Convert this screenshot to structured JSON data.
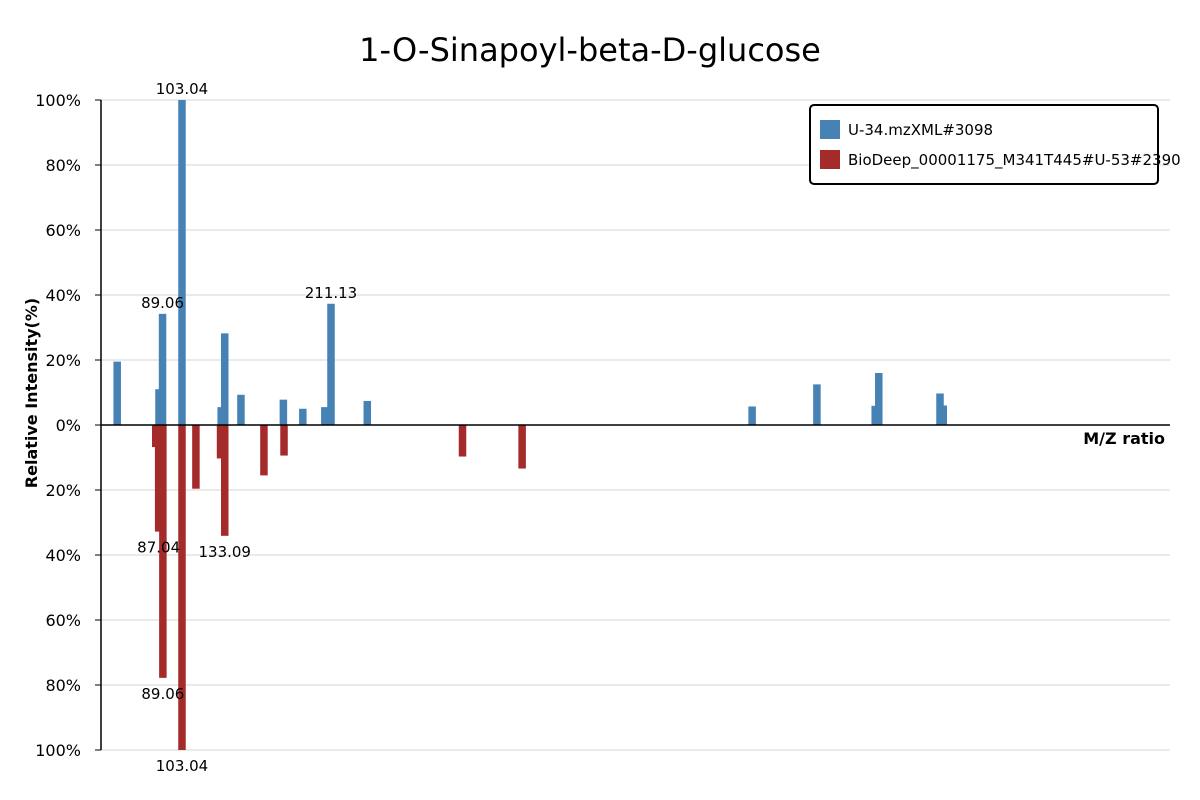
{
  "chart_data": {
    "type": "bar",
    "title": "1-O-Sinapoyl-beta-D-glucose",
    "xlabel": "M/Z ratio",
    "ylabel": "Relative Intensity(%)",
    "ylim": [
      -100,
      100
    ],
    "xlim": [
      50,
      380
    ],
    "y_ticks": [
      "100%",
      "80%",
      "60%",
      "40%",
      "20%",
      "0%",
      "20%",
      "40%",
      "60%",
      "80%",
      "100%"
    ],
    "grid": true,
    "legend_position": "top-right",
    "colors": {
      "query": "#4682b4",
      "reference": "#a52a2a"
    },
    "series": [
      {
        "name": "U-34.mzXML#3098",
        "direction": "up",
        "color": "#4682b4",
        "points": [
          {
            "mz": 55.0,
            "intensity": 19.5
          },
          {
            "mz": 67.9,
            "intensity": 11.0
          },
          {
            "mz": 69.0,
            "intensity": 34.2
          },
          {
            "mz": 75.0,
            "intensity": 100.0
          },
          {
            "mz": 87.1,
            "intensity": 5.5
          },
          {
            "mz": 88.2,
            "intensity": 28.2
          },
          {
            "mz": 93.2,
            "intensity": 9.3
          },
          {
            "mz": 106.3,
            "intensity": 7.8
          },
          {
            "mz": 112.3,
            "intensity": 5.0
          },
          {
            "mz": 119.1,
            "intensity": 5.5
          },
          {
            "mz": 121.0,
            "intensity": 37.3
          },
          {
            "mz": 132.2,
            "intensity": 7.4
          },
          {
            "mz": 251.0,
            "intensity": 5.7
          },
          {
            "mz": 271.0,
            "intensity": 12.5
          },
          {
            "mz": 289.0,
            "intensity": 5.9
          },
          {
            "mz": 290.1,
            "intensity": 16.0
          },
          {
            "mz": 309.0,
            "intensity": 9.7
          },
          {
            "mz": 310.0,
            "intensity": 6.0
          }
        ],
        "labels": [
          {
            "mz": 75.0,
            "intensity": 100.0,
            "text": "103.04"
          },
          {
            "mz": 69.0,
            "intensity": 34.2,
            "text": "89.06"
          },
          {
            "mz": 121.0,
            "intensity": 37.3,
            "text": "211.13"
          }
        ]
      },
      {
        "name": "BioDeep_00001175_M341T445#U-53#2390",
        "direction": "down",
        "color": "#a52a2a",
        "points": [
          {
            "mz": 66.9,
            "intensity": 6.8
          },
          {
            "mz": 67.8,
            "intensity": 32.8
          },
          {
            "mz": 69.1,
            "intensity": 77.8
          },
          {
            "mz": 75.0,
            "intensity": 100.0
          },
          {
            "mz": 79.3,
            "intensity": 19.6
          },
          {
            "mz": 86.9,
            "intensity": 10.3
          },
          {
            "mz": 88.2,
            "intensity": 34.1
          },
          {
            "mz": 100.3,
            "intensity": 15.5
          },
          {
            "mz": 106.5,
            "intensity": 9.4
          },
          {
            "mz": 161.6,
            "intensity": 9.7
          },
          {
            "mz": 180.0,
            "intensity": 13.4
          }
        ],
        "labels": [
          {
            "mz": 67.8,
            "intensity": 32.8,
            "text": "87.04"
          },
          {
            "mz": 88.2,
            "intensity": 34.1,
            "text": "133.09"
          },
          {
            "mz": 69.1,
            "intensity": 77.8,
            "text": "89.06"
          },
          {
            "mz": 75.0,
            "intensity": 100.0,
            "text": "103.04"
          }
        ]
      }
    ]
  }
}
